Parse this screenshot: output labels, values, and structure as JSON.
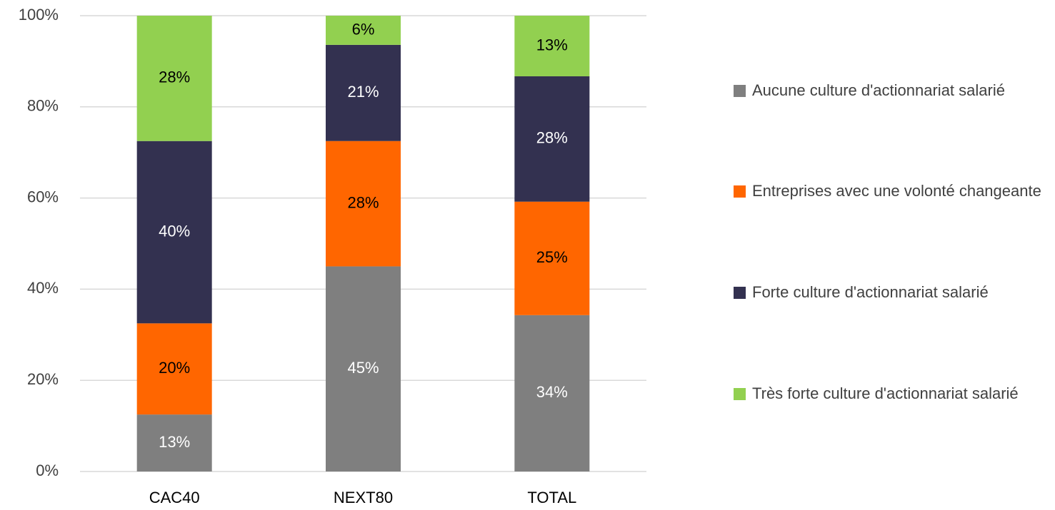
{
  "chart_data": {
    "type": "stacked-bar",
    "categories": [
      "CAC40",
      "NEXT80",
      "TOTAL"
    ],
    "series": [
      {
        "name": "Aucune culture d'actionnariat salarié",
        "color": "#7f7f7f",
        "values": [
          12.5,
          45,
          34.3
        ],
        "value_labels": [
          "13%",
          "45%",
          "34%"
        ]
      },
      {
        "name": "Entreprises avec une volonté changeante",
        "color": "#ff6600",
        "values": [
          20,
          27.5,
          24.9
        ],
        "value_labels": [
          "20%",
          "28%",
          "25%"
        ]
      },
      {
        "name": "Forte culture d'actionnariat salarié",
        "color": "#333150",
        "values": [
          40,
          21.1,
          27.5
        ],
        "value_labels": [
          "40%",
          "21%",
          "28%"
        ]
      },
      {
        "name": "Très forte culture d'actionnariat salarié",
        "color": "#92d050",
        "values": [
          27.5,
          6.4,
          13.3
        ],
        "value_labels": [
          "28%",
          "6%",
          "13%"
        ]
      }
    ],
    "ylim": [
      0,
      100
    ],
    "yticks": [
      {
        "value": 0,
        "label": "0%"
      },
      {
        "value": 20,
        "label": "20%"
      },
      {
        "value": 40,
        "label": "40%"
      },
      {
        "value": 60,
        "label": "60%"
      },
      {
        "value": 80,
        "label": "80%"
      },
      {
        "value": 100,
        "label": "100%"
      }
    ],
    "grid": true,
    "legend": "right"
  }
}
